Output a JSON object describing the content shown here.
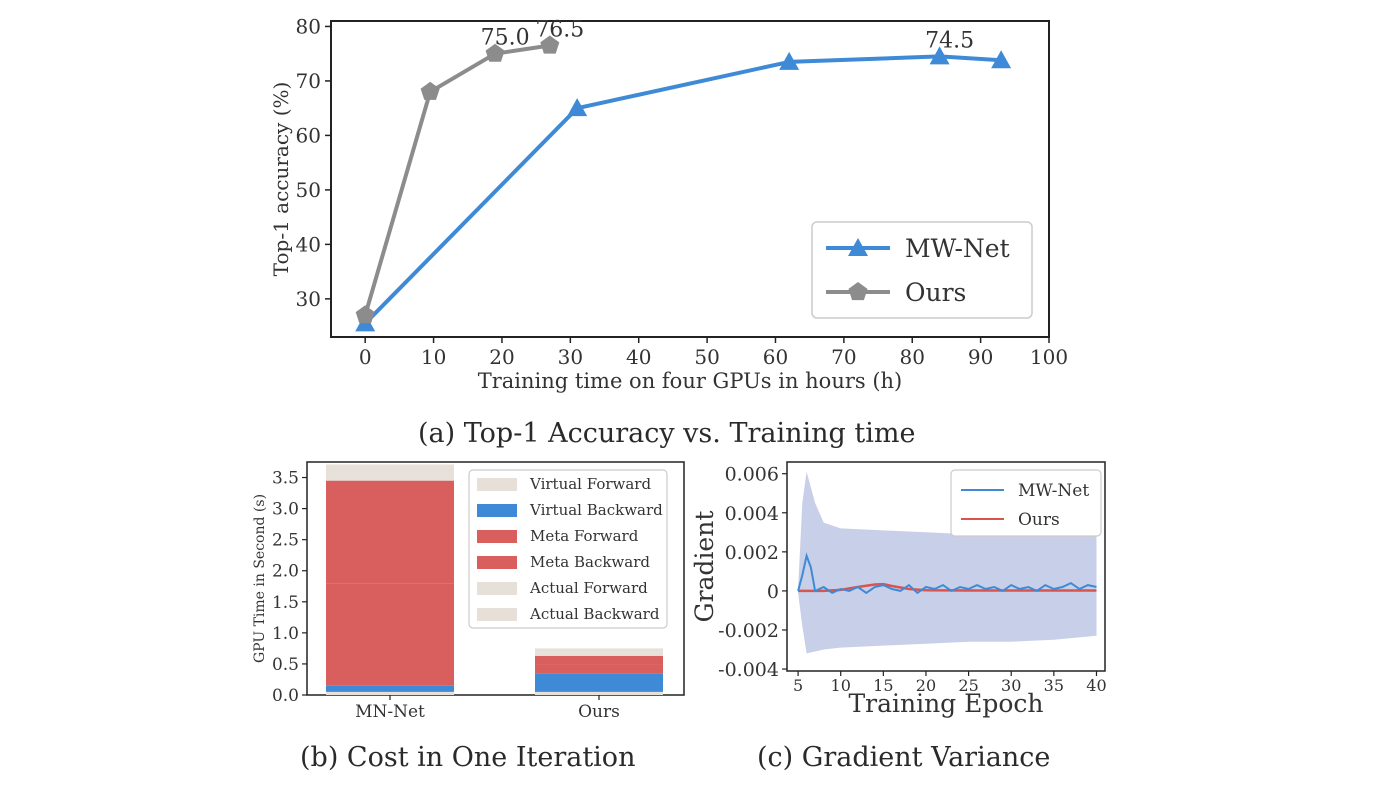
{
  "captions": {
    "a": "(a) Top-1 Accuracy vs. Training time",
    "b": "(b) Cost in One Iteration",
    "c": "(c) Gradient Variance"
  },
  "colors": {
    "blue": "#3f8ad6",
    "gray": "#8c8c8c",
    "red": "#d95f5f",
    "beige": "#e6e0d8",
    "band": "#b6bfe0"
  },
  "chart_data": [
    {
      "id": "a",
      "type": "line",
      "title": "",
      "xlabel": "Training time on four GPUs in hours (h)",
      "ylabel": "Top-1 accuracy (%)",
      "xlim": [
        -5,
        100
      ],
      "ylim": [
        23,
        81
      ],
      "xticks": [
        0,
        10,
        20,
        30,
        40,
        50,
        60,
        70,
        80,
        90,
        100
      ],
      "yticks": [
        30,
        40,
        50,
        60,
        70,
        80
      ],
      "legend_position": "bottom-right",
      "series": [
        {
          "name": "MW-Net",
          "color": "#3f8ad6",
          "marker": "triangle",
          "x": [
            0,
            31,
            62,
            84,
            93
          ],
          "y": [
            25.5,
            65,
            73.5,
            74.5,
            73.8
          ]
        },
        {
          "name": "Ours",
          "color": "#8c8c8c",
          "marker": "pentagon",
          "x": [
            0,
            9.5,
            19,
            27
          ],
          "y": [
            27,
            68,
            75,
            76.5
          ]
        }
      ],
      "annotations": [
        {
          "text": "75.0",
          "x": 19,
          "y": 75
        },
        {
          "text": "76.5",
          "x": 27,
          "y": 76.5
        },
        {
          "text": "74.5",
          "x": 84,
          "y": 74.5
        }
      ]
    },
    {
      "id": "b",
      "type": "bar",
      "stacked": true,
      "title": "",
      "xlabel": "",
      "ylabel": "GPU Time in Second (s)",
      "categories": [
        "MN-Net",
        "Ours"
      ],
      "ylim": [
        0,
        3.75
      ],
      "yticks": [
        0.0,
        0.5,
        1.0,
        1.5,
        2.0,
        2.5,
        3.0,
        3.5
      ],
      "legend_position": "top-right",
      "series": [
        {
          "name": "Virtual Forward",
          "color": "#e6e0d8",
          "values": [
            0.05,
            0.05
          ]
        },
        {
          "name": "Virtual Backward",
          "color": "#3f8ad6",
          "values": [
            0.1,
            0.3
          ]
        },
        {
          "name": "Meta Forward",
          "color": "#d95f5f",
          "values": [
            1.65,
            0.14
          ]
        },
        {
          "name": "Meta Backward",
          "color": "#d95f5f",
          "values": [
            1.65,
            0.14
          ]
        },
        {
          "name": "Actual Forward",
          "color": "#e6e0d8",
          "values": [
            0.13,
            0.06
          ]
        },
        {
          "name": "Actual Backward",
          "color": "#e6e0d8",
          "values": [
            0.13,
            0.06
          ]
        }
      ]
    },
    {
      "id": "c",
      "type": "line",
      "title": "",
      "xlabel": "Training Epoch",
      "ylabel": "Gradient",
      "xlim": [
        3.7,
        41
      ],
      "ylim": [
        -0.0041,
        0.0066
      ],
      "xticks": [
        5,
        10,
        15,
        20,
        25,
        30,
        35,
        40
      ],
      "yticks": [
        -0.004,
        -0.002,
        0,
        0.002,
        0.004,
        0.006
      ],
      "ytick_labels": [
        "-0.004",
        "-0.002",
        "0",
        "0.002",
        "0.004",
        "0.006"
      ],
      "legend_position": "top-right",
      "series": [
        {
          "name": "MW-Net",
          "color": "#3f8ad6",
          "x": [
            5,
            5.5,
            6,
            6.5,
            7,
            8,
            9,
            10,
            11,
            12,
            13,
            14,
            15,
            16,
            17,
            18,
            19,
            20,
            21,
            22,
            23,
            24,
            25,
            26,
            27,
            28,
            29,
            30,
            31,
            32,
            33,
            34,
            35,
            36,
            37,
            38,
            39,
            40
          ],
          "y": [
            0,
            0.0008,
            0.0018,
            0.0012,
            0,
            0.0002,
            -0.0001,
            0.0001,
            0,
            0.0002,
            -0.0001,
            0.0002,
            0.0003,
            0.0001,
            0,
            0.0003,
            -0.0001,
            0.0002,
            0.0001,
            0.0003,
            0,
            0.0002,
            0.0001,
            0.0003,
            0.0001,
            0.0002,
            0,
            0.0003,
            0.0001,
            0.0002,
            0,
            0.0003,
            0.0001,
            0.0002,
            0.0004,
            0.0001,
            0.0003,
            0.0002
          ]
        },
        {
          "name": "Ours",
          "color": "#d9534f",
          "x": [
            5,
            8,
            10,
            12,
            14,
            15,
            16,
            18,
            20,
            25,
            30,
            35,
            40
          ],
          "y": [
            0,
            0,
            5e-05,
            0.0002,
            0.00033,
            0.00035,
            0.00025,
            0.0001,
            3e-05,
            2e-05,
            2e-05,
            2e-05,
            2e-05
          ]
        }
      ],
      "band": {
        "color": "#b6bfe0",
        "x": [
          5,
          5.5,
          6,
          7,
          8,
          10,
          15,
          20,
          25,
          30,
          35,
          40
        ],
        "upper": [
          0.0001,
          0.0045,
          0.0061,
          0.0045,
          0.0035,
          0.0032,
          0.0031,
          0.003,
          0.0029,
          0.0029,
          0.0028,
          0.0029
        ],
        "lower": [
          -0.0001,
          -0.0018,
          -0.0032,
          -0.0031,
          -0.003,
          -0.0029,
          -0.0028,
          -0.0027,
          -0.0026,
          -0.0026,
          -0.0025,
          -0.0023
        ]
      }
    }
  ]
}
